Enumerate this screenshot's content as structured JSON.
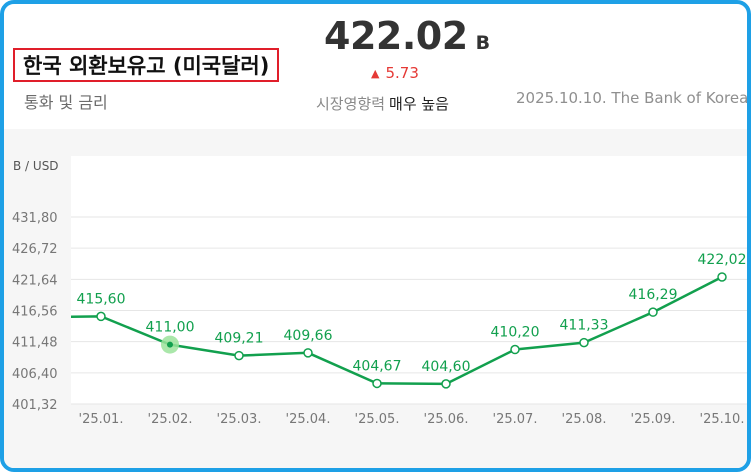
{
  "header": {
    "title": "한국 외환보유고 (미국달러)",
    "subtitle": "통화 및 금리",
    "price": "422.02",
    "price_unit": "B",
    "change": "5.73",
    "impact_label": "시장영향력",
    "impact_value": "매우 높음",
    "source": "2025.10.10. The Bank of Korea"
  },
  "chart_data": {
    "type": "line",
    "unit_label": "B / USD",
    "categories": [
      "'25.01.",
      "'25.02.",
      "'25.03.",
      "'25.04.",
      "'25.05.",
      "'25.06.",
      "'25.07.",
      "'25.08.",
      "'25.09.",
      "'25.10."
    ],
    "values": [
      415.6,
      411.0,
      409.21,
      409.66,
      404.67,
      404.6,
      410.2,
      411.33,
      416.29,
      422.02
    ],
    "value_labels": [
      "415,60",
      "411,00",
      "409,21",
      "409,66",
      "404,67",
      "404,60",
      "410,20",
      "411,33",
      "416,29",
      "422,02"
    ],
    "y_ticks": [
      431.8,
      426.72,
      421.64,
      416.56,
      411.48,
      406.4,
      401.32
    ],
    "y_tick_labels": [
      "431,80",
      "426,72",
      "421,64",
      "416,56",
      "411,48",
      "406,40",
      "401,32"
    ],
    "ylim": [
      401.32,
      431.8
    ],
    "highlight_index": 1,
    "grid": true,
    "colors": {
      "line": "#12a04e",
      "label": "#12a04e",
      "highlight": "#9be39b",
      "grid": "#e6e6e6",
      "tick": "#777777"
    }
  }
}
